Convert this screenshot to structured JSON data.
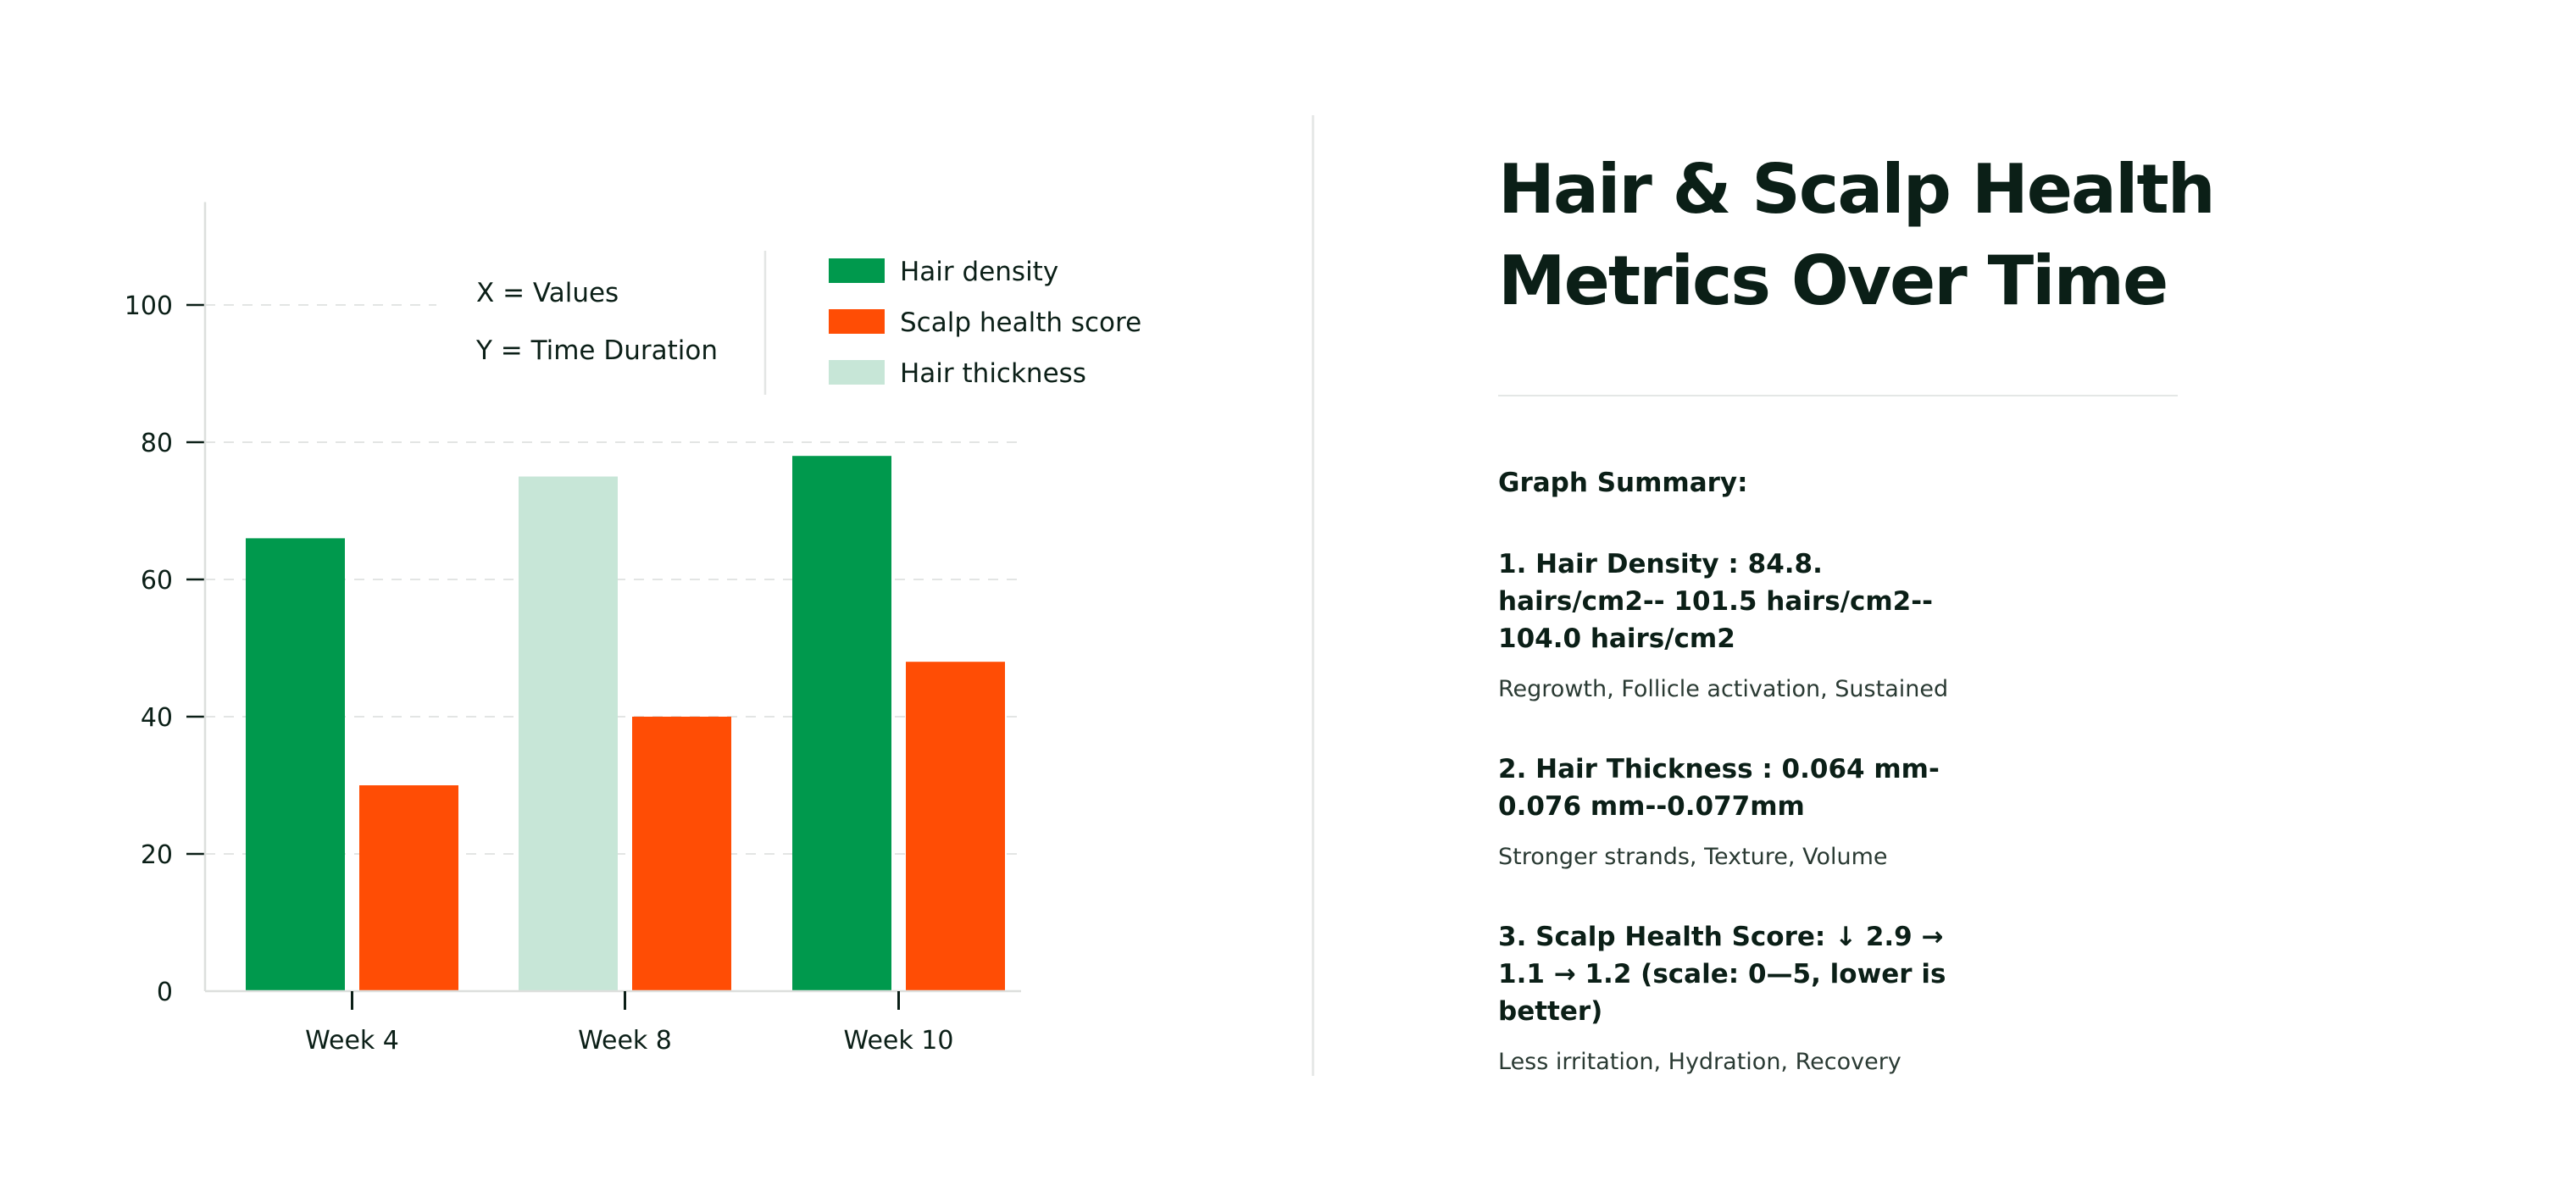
{
  "colors": {
    "hair_density": "#00994d",
    "scalp_health": "#ff4d05",
    "hair_thickness": "#c7e6d7",
    "text_dark": "#0b1f17",
    "gridline": "#e3e5e4",
    "axis": "#dcdfdd"
  },
  "chart_data": {
    "type": "bar",
    "categories": [
      "Week 4",
      "Week 8",
      "Week 10"
    ],
    "bars": [
      {
        "category": "Week 4",
        "series": "Hair density",
        "value": 66
      },
      {
        "category": "Week 4",
        "series": "Scalp health score",
        "value": 30
      },
      {
        "category": "Week 8",
        "series": "Hair thickness",
        "value": 75
      },
      {
        "category": "Week 8",
        "series": "Scalp health score",
        "value": 40
      },
      {
        "category": "Week 10",
        "series": "Hair density",
        "value": 78
      },
      {
        "category": "Week 10",
        "series": "Scalp health score",
        "value": 48
      }
    ],
    "legend": [
      "Hair density",
      "Scalp health score",
      "Hair thickness"
    ],
    "legend_placement": "top-right",
    "axis_note": [
      "X = Values",
      "Y = Time Duration"
    ],
    "yticks": [
      0,
      20,
      40,
      60,
      80,
      100
    ],
    "ylim": [
      0,
      115
    ],
    "grid": true,
    "title": "",
    "xlabel": "",
    "ylabel": ""
  },
  "panel": {
    "title": "Hair & Scalp Health Metrics Over Time",
    "summary_heading": "Graph Summary:",
    "metrics": [
      {
        "title": "1. Hair Density : 84.8. hairs/cm2-- 101.5 hairs/cm2-- 104.0 hairs/cm2",
        "tags": "Regrowth, Follicle activation, Sustained"
      },
      {
        "title": "2. Hair Thickness : 0.064 mm-0.076 mm--0.077mm",
        "tags": "Stronger strands, Texture, Volume"
      },
      {
        "title": "3. Scalp Health Score: ↓ 2.9 → 1.1 → 1.2 (scale: 0—5, lower is better)",
        "tags": "Less irritation, Hydration, Recovery"
      }
    ]
  }
}
